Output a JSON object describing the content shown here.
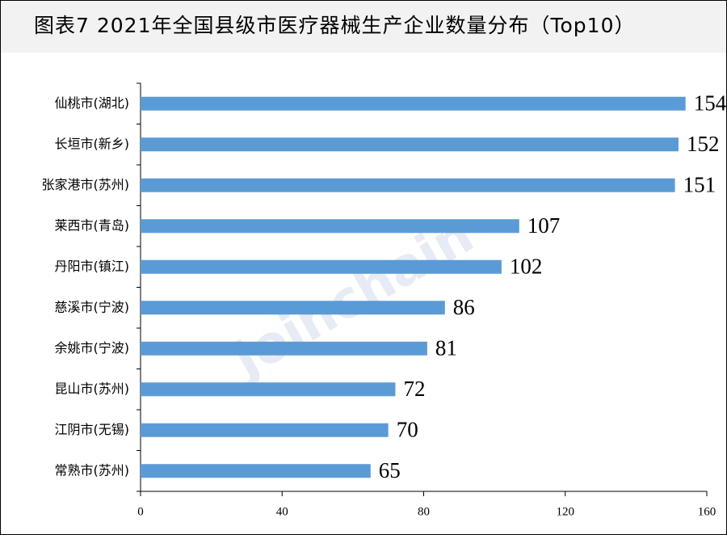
{
  "chart_data": {
    "type": "bar",
    "orientation": "horizontal",
    "title": "图表7  2021年全国县级市医疗器械生产企业数量分布（Top10）",
    "watermark": "Joinchain",
    "categories": [
      "仙桃市(湖北)",
      "长垣市(新乡)",
      "张家港市(苏州)",
      "莱西市(青岛)",
      "丹阳市(镇江)",
      "慈溪市(宁波)",
      "余姚市(宁波)",
      "昆山市(苏州)",
      "江阴市(无锡)",
      "常熟市(苏州)"
    ],
    "values": [
      154,
      152,
      151,
      107,
      102,
      86,
      81,
      72,
      70,
      65
    ],
    "color": "#5b9bd5",
    "xlim": [
      0,
      160
    ],
    "xticks": [
      0,
      40,
      80,
      120,
      160
    ],
    "grid": false
  }
}
